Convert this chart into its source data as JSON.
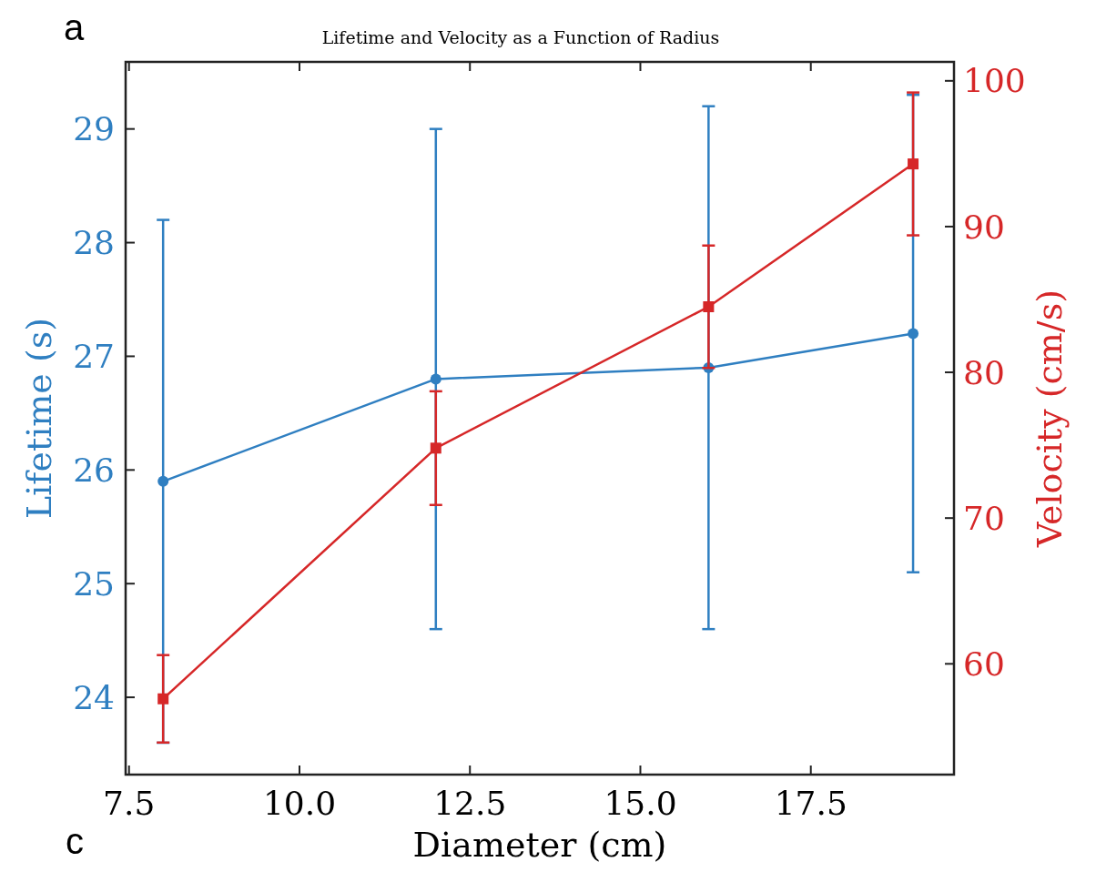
{
  "chart_data": {
    "type": "line",
    "title": "Lifetime and Velocity as a Function of Radius",
    "xlabel": "Diameter (cm)",
    "ylabel": "Lifetime (s)",
    "y2label": "Velocity (cm/s)",
    "annotations": [
      "a",
      "c"
    ],
    "x": [
      8,
      12,
      16,
      19
    ],
    "xlim": [
      7.45,
      19.6
    ],
    "xticks": [
      {
        "value": 7.5,
        "label": "7.5"
      },
      {
        "value": 10,
        "label": "10.0"
      },
      {
        "value": 12.5,
        "label": "12.5"
      },
      {
        "value": 15,
        "label": "15.0"
      },
      {
        "value": 17.5,
        "label": "17.5"
      }
    ],
    "ylim": [
      23.32,
      29.59
    ],
    "yticks": [
      24,
      25,
      26,
      27,
      28,
      29
    ],
    "y2lim": [
      52.4,
      101.3
    ],
    "y2ticks": [
      60,
      70,
      80,
      90,
      100
    ],
    "marker": "circle",
    "line_style": "solid",
    "grid": false,
    "series": [
      {
        "color": "#2f7fc1",
        "values": [
          25.9,
          26.8,
          26.9,
          27.2
        ],
        "errors": [
          2.3,
          2.2,
          2.3,
          2.1
        ],
        "marker": "circle"
      },
      {
        "color": "#d62728",
        "axis": "y2",
        "values": [
          57.6,
          74.8,
          84.5,
          94.3
        ],
        "errors": [
          3,
          3.9,
          4.2,
          4.9
        ],
        "marker": "square"
      }
    ]
  }
}
